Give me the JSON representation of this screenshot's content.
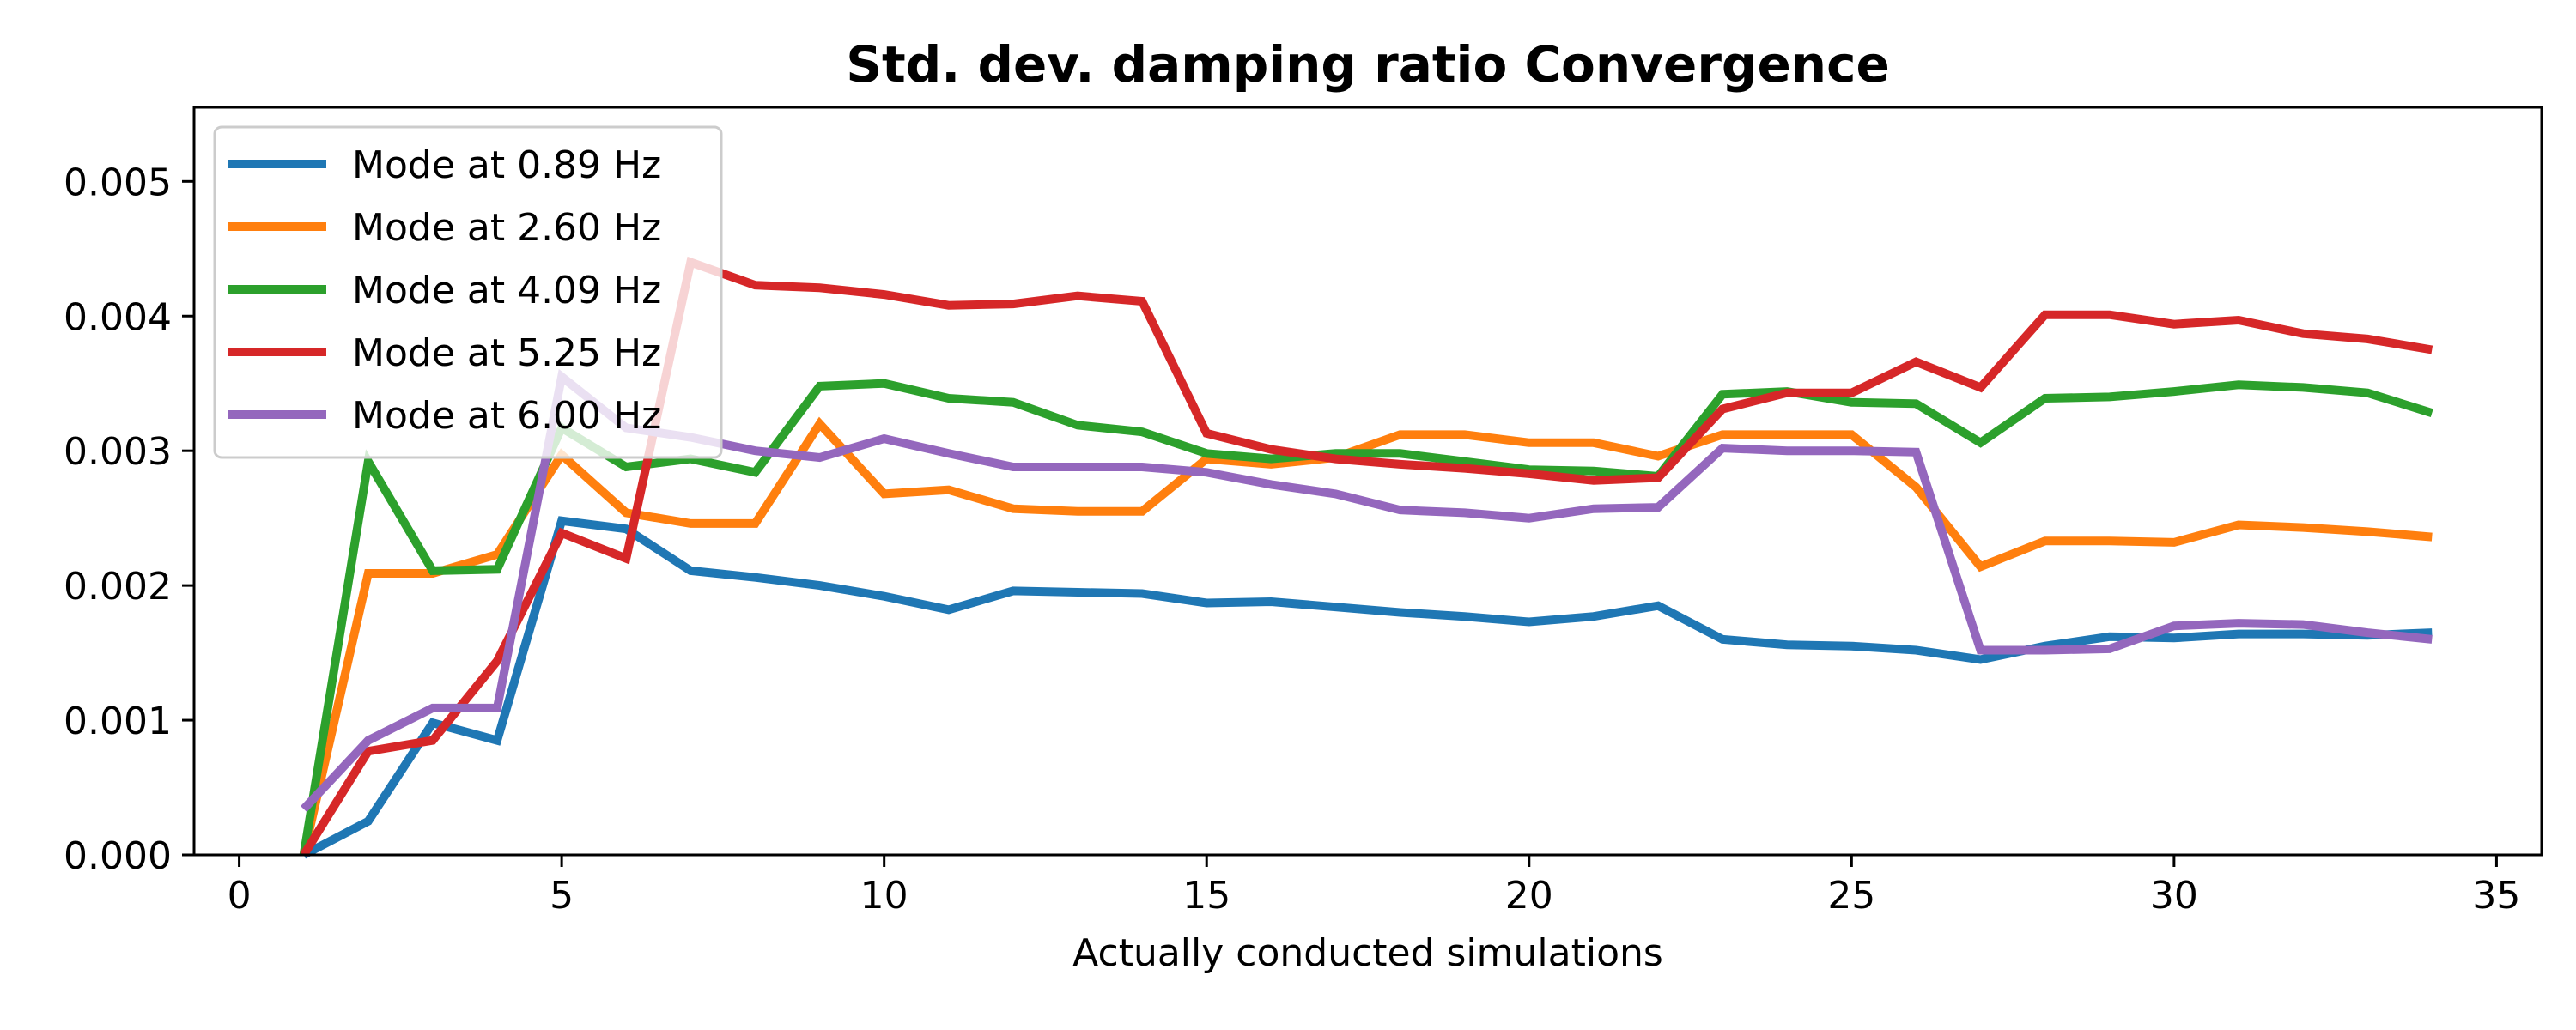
{
  "chart_data": {
    "type": "line",
    "title": "Std. dev. damping ratio Convergence",
    "xlabel": "Actually conducted simulations",
    "ylabel": "",
    "xlim": [
      -0.7,
      35.7
    ],
    "ylim": [
      0.0,
      0.00555
    ],
    "xticks": [
      0,
      5,
      10,
      15,
      20,
      25,
      30,
      35
    ],
    "xtick_labels": [
      "0",
      "5",
      "10",
      "15",
      "20",
      "25",
      "30",
      "35"
    ],
    "yticks": [
      0.0,
      0.001,
      0.002,
      0.003,
      0.004,
      0.005
    ],
    "ytick_labels": [
      "0.000",
      "0.001",
      "0.002",
      "0.003",
      "0.004",
      "0.005"
    ],
    "grid": false,
    "legend_position": "top-left",
    "x": [
      1,
      2,
      3,
      4,
      5,
      6,
      7,
      8,
      9,
      10,
      11,
      12,
      13,
      14,
      15,
      16,
      17,
      18,
      19,
      20,
      21,
      22,
      23,
      24,
      25,
      26,
      27,
      28,
      29,
      30,
      31,
      32,
      33,
      34
    ],
    "series": [
      {
        "name": "Mode at 0.89 Hz",
        "color": "#1f77b4",
        "values": [
          0.0,
          0.00025,
          0.00098,
          0.00085,
          0.00248,
          0.00242,
          0.00211,
          0.00206,
          0.002,
          0.00192,
          0.00182,
          0.00196,
          0.00195,
          0.00194,
          0.00187,
          0.00188,
          0.00184,
          0.0018,
          0.00177,
          0.00173,
          0.00177,
          0.00185,
          0.0016,
          0.00156,
          0.00155,
          0.00152,
          0.00145,
          0.00155,
          0.00162,
          0.00161,
          0.00164,
          0.00164,
          0.00163,
          0.00165
        ]
      },
      {
        "name": "Mode at 2.60 Hz",
        "color": "#ff7f0e",
        "values": [
          0.0,
          0.00209,
          0.00209,
          0.00223,
          0.00297,
          0.00254,
          0.00246,
          0.00246,
          0.0032,
          0.00268,
          0.00271,
          0.00257,
          0.00255,
          0.00255,
          0.00294,
          0.0029,
          0.00295,
          0.00312,
          0.00312,
          0.00306,
          0.00306,
          0.00296,
          0.00312,
          0.00312,
          0.00312,
          0.00273,
          0.00214,
          0.00233,
          0.00233,
          0.00232,
          0.00245,
          0.00243,
          0.0024,
          0.00236
        ]
      },
      {
        "name": "Mode at 4.09 Hz",
        "color": "#2ca02c",
        "values": [
          0.0,
          0.00292,
          0.00211,
          0.00212,
          0.00317,
          0.00288,
          0.00294,
          0.00284,
          0.00348,
          0.0035,
          0.00339,
          0.00336,
          0.00319,
          0.00314,
          0.00298,
          0.00294,
          0.00298,
          0.00298,
          0.00292,
          0.00286,
          0.00285,
          0.00281,
          0.00342,
          0.00344,
          0.00336,
          0.00335,
          0.00306,
          0.00339,
          0.0034,
          0.00344,
          0.00349,
          0.00347,
          0.00343,
          0.00328
        ]
      },
      {
        "name": "Mode at 5.25 Hz",
        "color": "#d62728",
        "values": [
          0.0,
          0.00077,
          0.00085,
          0.00144,
          0.00239,
          0.0022,
          0.0044,
          0.00423,
          0.00421,
          0.00416,
          0.00408,
          0.00409,
          0.00415,
          0.00411,
          0.00313,
          0.00301,
          0.00294,
          0.0029,
          0.00287,
          0.00283,
          0.00278,
          0.0028,
          0.00331,
          0.00343,
          0.00343,
          0.00366,
          0.00347,
          0.00401,
          0.00401,
          0.00394,
          0.00397,
          0.00387,
          0.00383,
          0.00375
        ]
      },
      {
        "name": "Mode at 6.00 Hz",
        "color": "#9467bd",
        "values": [
          0.00034,
          0.00085,
          0.00109,
          0.00109,
          0.00355,
          0.00317,
          0.0031,
          0.003,
          0.00295,
          0.00309,
          0.00298,
          0.00288,
          0.00288,
          0.00288,
          0.00284,
          0.00275,
          0.00268,
          0.00256,
          0.00254,
          0.0025,
          0.00257,
          0.00258,
          0.00302,
          0.003,
          0.003,
          0.00299,
          0.00152,
          0.00152,
          0.00153,
          0.0017,
          0.00172,
          0.00171,
          0.00165,
          0.0016
        ]
      }
    ]
  }
}
